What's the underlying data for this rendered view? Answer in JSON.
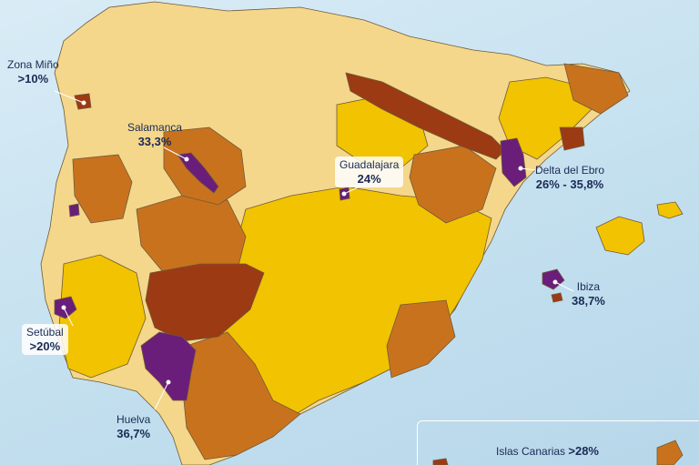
{
  "colors": {
    "sea": "#c4e0ef",
    "low": "#f4d78a",
    "medium": "#f2c300",
    "high": "#c9721e",
    "very_high": "#9c3a14",
    "extreme": "#6b1d7a",
    "border": "#6e5a3a"
  },
  "callouts": [
    {
      "id": "mino",
      "name": "Zona Miño",
      "value": ">10%"
    },
    {
      "id": "salamanca",
      "name": "Salamanca",
      "value": "33,3%"
    },
    {
      "id": "guadalajara",
      "name": "Guadalajara",
      "value": "24%"
    },
    {
      "id": "ebro",
      "name": "Delta del Ebro",
      "value": "26% - 35,8%"
    },
    {
      "id": "ibiza",
      "name": "Ibiza",
      "value": "38,7%"
    },
    {
      "id": "setubal",
      "name": "Setúbal",
      "value": ">20%"
    },
    {
      "id": "huelva",
      "name": "Huelva",
      "value": "36,7%"
    }
  ],
  "canarias": {
    "name": "Islas Canarias",
    "value": ">28%"
  }
}
